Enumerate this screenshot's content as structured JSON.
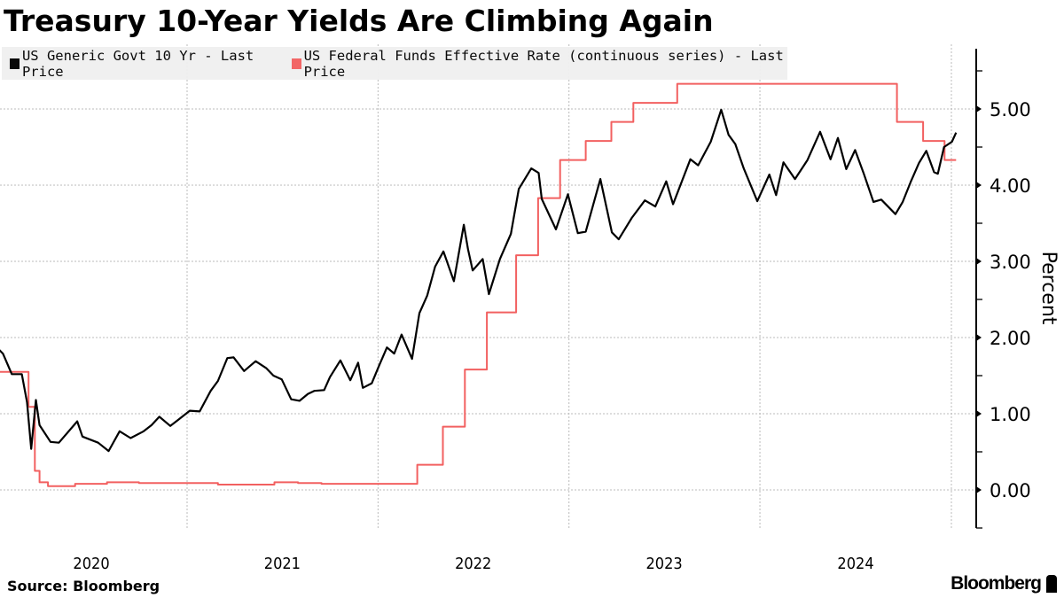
{
  "title": "Treasury 10-Year Yields Are Climbing Again",
  "source": "Source: Bloomberg",
  "logo": "Bloomberg",
  "chart_data": {
    "type": "line",
    "title": "Treasury 10-Year Yields Are Climbing Again",
    "ylabel": "Percent",
    "xlabel": "",
    "ylim": [
      -0.5,
      5.8
    ],
    "xlim": [
      "2020-01-02",
      "2025-01-20"
    ],
    "yticks": [
      "0.00",
      "1.00",
      "2.00",
      "3.00",
      "4.00",
      "5.00"
    ],
    "xticks": [
      "2020",
      "2021",
      "2022",
      "2023",
      "2024"
    ],
    "grid": true,
    "legend": "top-left",
    "series": [
      {
        "name": "US Generic Govt 10 Yr - Last Price",
        "color": "#000000",
        "step": false,
        "points": [
          [
            "2020-01-02",
            1.88
          ],
          [
            "2020-01-15",
            1.79
          ],
          [
            "2020-02-01",
            1.52
          ],
          [
            "2020-02-20",
            1.52
          ],
          [
            "2020-03-01",
            1.15
          ],
          [
            "2020-03-09",
            0.54
          ],
          [
            "2020-03-18",
            1.18
          ],
          [
            "2020-03-25",
            0.85
          ],
          [
            "2020-04-15",
            0.63
          ],
          [
            "2020-05-01",
            0.62
          ],
          [
            "2020-06-05",
            0.9
          ],
          [
            "2020-06-15",
            0.7
          ],
          [
            "2020-07-15",
            0.62
          ],
          [
            "2020-08-04",
            0.51
          ],
          [
            "2020-08-25",
            0.77
          ],
          [
            "2020-09-15",
            0.68
          ],
          [
            "2020-10-10",
            0.77
          ],
          [
            "2020-10-25",
            0.85
          ],
          [
            "2020-11-09",
            0.96
          ],
          [
            "2020-11-30",
            0.84
          ],
          [
            "2020-12-15",
            0.92
          ],
          [
            "2021-01-06",
            1.04
          ],
          [
            "2021-01-25",
            1.03
          ],
          [
            "2021-02-15",
            1.3
          ],
          [
            "2021-03-01",
            1.43
          ],
          [
            "2021-03-19",
            1.73
          ],
          [
            "2021-03-31",
            1.74
          ],
          [
            "2021-04-20",
            1.56
          ],
          [
            "2021-05-12",
            1.69
          ],
          [
            "2021-06-01",
            1.6
          ],
          [
            "2021-06-15",
            1.5
          ],
          [
            "2021-07-01",
            1.45
          ],
          [
            "2021-07-19",
            1.19
          ],
          [
            "2021-08-04",
            1.17
          ],
          [
            "2021-08-20",
            1.26
          ],
          [
            "2021-09-01",
            1.3
          ],
          [
            "2021-09-20",
            1.31
          ],
          [
            "2021-10-01",
            1.48
          ],
          [
            "2021-10-21",
            1.7
          ],
          [
            "2021-11-09",
            1.44
          ],
          [
            "2021-11-24",
            1.67
          ],
          [
            "2021-12-03",
            1.34
          ],
          [
            "2021-12-20",
            1.4
          ],
          [
            "2022-01-03",
            1.63
          ],
          [
            "2022-01-18",
            1.87
          ],
          [
            "2022-02-01",
            1.79
          ],
          [
            "2022-02-15",
            2.04
          ],
          [
            "2022-03-07",
            1.72
          ],
          [
            "2022-03-21",
            2.32
          ],
          [
            "2022-04-05",
            2.55
          ],
          [
            "2022-04-20",
            2.93
          ],
          [
            "2022-05-06",
            3.13
          ],
          [
            "2022-05-26",
            2.74
          ],
          [
            "2022-06-14",
            3.48
          ],
          [
            "2022-06-22",
            3.16
          ],
          [
            "2022-07-01",
            2.88
          ],
          [
            "2022-07-20",
            3.03
          ],
          [
            "2022-08-01",
            2.57
          ],
          [
            "2022-08-22",
            3.03
          ],
          [
            "2022-09-12",
            3.36
          ],
          [
            "2022-09-27",
            3.95
          ],
          [
            "2022-10-21",
            4.22
          ],
          [
            "2022-11-04",
            4.16
          ],
          [
            "2022-11-10",
            3.82
          ],
          [
            "2022-12-01",
            3.51
          ],
          [
            "2022-12-07",
            3.42
          ],
          [
            "2022-12-30",
            3.88
          ],
          [
            "2023-01-18",
            3.37
          ],
          [
            "2023-02-02",
            3.39
          ],
          [
            "2023-03-02",
            4.08
          ],
          [
            "2023-03-24",
            3.38
          ],
          [
            "2023-04-06",
            3.29
          ],
          [
            "2023-05-01",
            3.57
          ],
          [
            "2023-05-26",
            3.8
          ],
          [
            "2023-06-15",
            3.72
          ],
          [
            "2023-07-06",
            4.05
          ],
          [
            "2023-07-19",
            3.75
          ],
          [
            "2023-08-21",
            4.34
          ],
          [
            "2023-09-05",
            4.26
          ],
          [
            "2023-09-29",
            4.57
          ],
          [
            "2023-10-19",
            4.99
          ],
          [
            "2023-11-02",
            4.66
          ],
          [
            "2023-11-15",
            4.54
          ],
          [
            "2023-12-01",
            4.22
          ],
          [
            "2023-12-27",
            3.79
          ],
          [
            "2024-01-19",
            4.14
          ],
          [
            "2024-02-01",
            3.87
          ],
          [
            "2024-02-15",
            4.3
          ],
          [
            "2024-03-08",
            4.08
          ],
          [
            "2024-04-01",
            4.33
          ],
          [
            "2024-04-25",
            4.7
          ],
          [
            "2024-05-15",
            4.34
          ],
          [
            "2024-05-29",
            4.62
          ],
          [
            "2024-06-14",
            4.21
          ],
          [
            "2024-07-01",
            4.46
          ],
          [
            "2024-07-17",
            4.16
          ],
          [
            "2024-08-05",
            3.78
          ],
          [
            "2024-08-20",
            3.81
          ],
          [
            "2024-09-16",
            3.62
          ],
          [
            "2024-09-30",
            3.78
          ],
          [
            "2024-10-15",
            4.04
          ],
          [
            "2024-10-31",
            4.29
          ],
          [
            "2024-11-14",
            4.45
          ],
          [
            "2024-11-29",
            4.17
          ],
          [
            "2024-12-06",
            4.15
          ],
          [
            "2024-12-18",
            4.5
          ],
          [
            "2025-01-02",
            4.57
          ],
          [
            "2025-01-10",
            4.69
          ]
        ]
      },
      {
        "name": "US Federal Funds Effective Rate (continuous series) - Last Price",
        "color": "#f26060",
        "step": true,
        "points": [
          [
            "2020-01-02",
            1.55
          ],
          [
            "2020-03-04",
            1.09
          ],
          [
            "2020-03-16",
            0.25
          ],
          [
            "2020-03-25",
            0.1
          ],
          [
            "2020-04-10",
            0.05
          ],
          [
            "2020-06-01",
            0.08
          ],
          [
            "2020-08-01",
            0.1
          ],
          [
            "2020-10-01",
            0.09
          ],
          [
            "2021-01-01",
            0.09
          ],
          [
            "2021-03-01",
            0.07
          ],
          [
            "2021-06-17",
            0.1
          ],
          [
            "2021-08-01",
            0.09
          ],
          [
            "2021-09-15",
            0.08
          ],
          [
            "2022-03-17",
            0.33
          ],
          [
            "2022-05-05",
            0.83
          ],
          [
            "2022-06-16",
            1.58
          ],
          [
            "2022-07-28",
            2.33
          ],
          [
            "2022-09-22",
            3.08
          ],
          [
            "2022-11-03",
            3.83
          ],
          [
            "2022-12-15",
            4.33
          ],
          [
            "2023-02-02",
            4.58
          ],
          [
            "2023-03-23",
            4.83
          ],
          [
            "2023-05-04",
            5.08
          ],
          [
            "2023-07-27",
            5.33
          ],
          [
            "2024-09-19",
            4.83
          ],
          [
            "2024-11-08",
            4.58
          ],
          [
            "2024-12-19",
            4.33
          ],
          [
            "2025-01-10",
            4.33
          ]
        ]
      }
    ]
  }
}
